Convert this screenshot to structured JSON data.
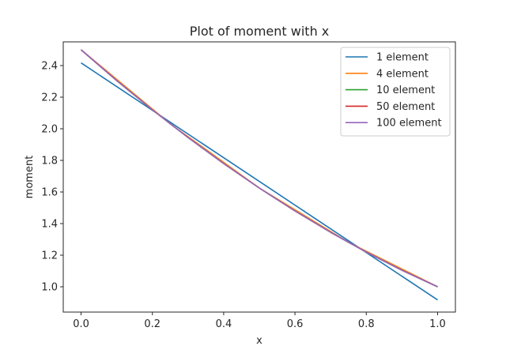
{
  "chart_data": {
    "type": "line",
    "title": "Plot of moment with x",
    "xlabel": "x",
    "ylabel": "moment",
    "xlim": [
      -0.05,
      1.05
    ],
    "ylim": [
      0.84,
      2.55
    ],
    "xticks": [
      0.0,
      0.2,
      0.4,
      0.6,
      0.8,
      1.0
    ],
    "xtick_labels": [
      "0.0",
      "0.2",
      "0.4",
      "0.6",
      "0.8",
      "1.0"
    ],
    "yticks": [
      1.0,
      1.2,
      1.4,
      1.6,
      1.8,
      2.0,
      2.2,
      2.4
    ],
    "ytick_labels": [
      "1.0",
      "1.2",
      "1.4",
      "1.6",
      "1.8",
      "2.0",
      "2.2",
      "2.4"
    ],
    "grid": false,
    "legend_position": "top-right",
    "series": [
      {
        "name": "1 element",
        "color": "#1f77b4",
        "x": [
          0.0,
          1.0
        ],
        "y": [
          2.417,
          0.917
        ]
      },
      {
        "name": "4 element",
        "color": "#ff7f0e",
        "x": [
          0.0,
          0.25,
          0.5,
          0.75,
          1.0
        ],
        "y": [
          2.5,
          2.0313,
          1.625,
          1.2813,
          1.0
        ]
      },
      {
        "name": "10 element",
        "color": "#2ca02c",
        "x": [
          0.0,
          0.1,
          0.2,
          0.3,
          0.4,
          0.5,
          0.6,
          0.7,
          0.8,
          0.9,
          1.0
        ],
        "y": [
          2.5,
          2.305,
          2.12,
          1.945,
          1.78,
          1.625,
          1.48,
          1.345,
          1.22,
          1.105,
          1.0
        ]
      },
      {
        "name": "50 element",
        "color": "#d62728",
        "x": [
          0.0,
          0.1,
          0.2,
          0.3,
          0.4,
          0.5,
          0.6,
          0.7,
          0.8,
          0.9,
          1.0
        ],
        "y": [
          2.5,
          2.305,
          2.12,
          1.945,
          1.78,
          1.625,
          1.48,
          1.345,
          1.22,
          1.105,
          1.0
        ]
      },
      {
        "name": "100 element",
        "color": "#9467bd",
        "x": [
          0.0,
          0.1,
          0.2,
          0.3,
          0.4,
          0.5,
          0.6,
          0.7,
          0.8,
          0.9,
          1.0
        ],
        "y": [
          2.5,
          2.305,
          2.12,
          1.945,
          1.78,
          1.625,
          1.48,
          1.345,
          1.22,
          1.105,
          1.0
        ]
      }
    ]
  }
}
